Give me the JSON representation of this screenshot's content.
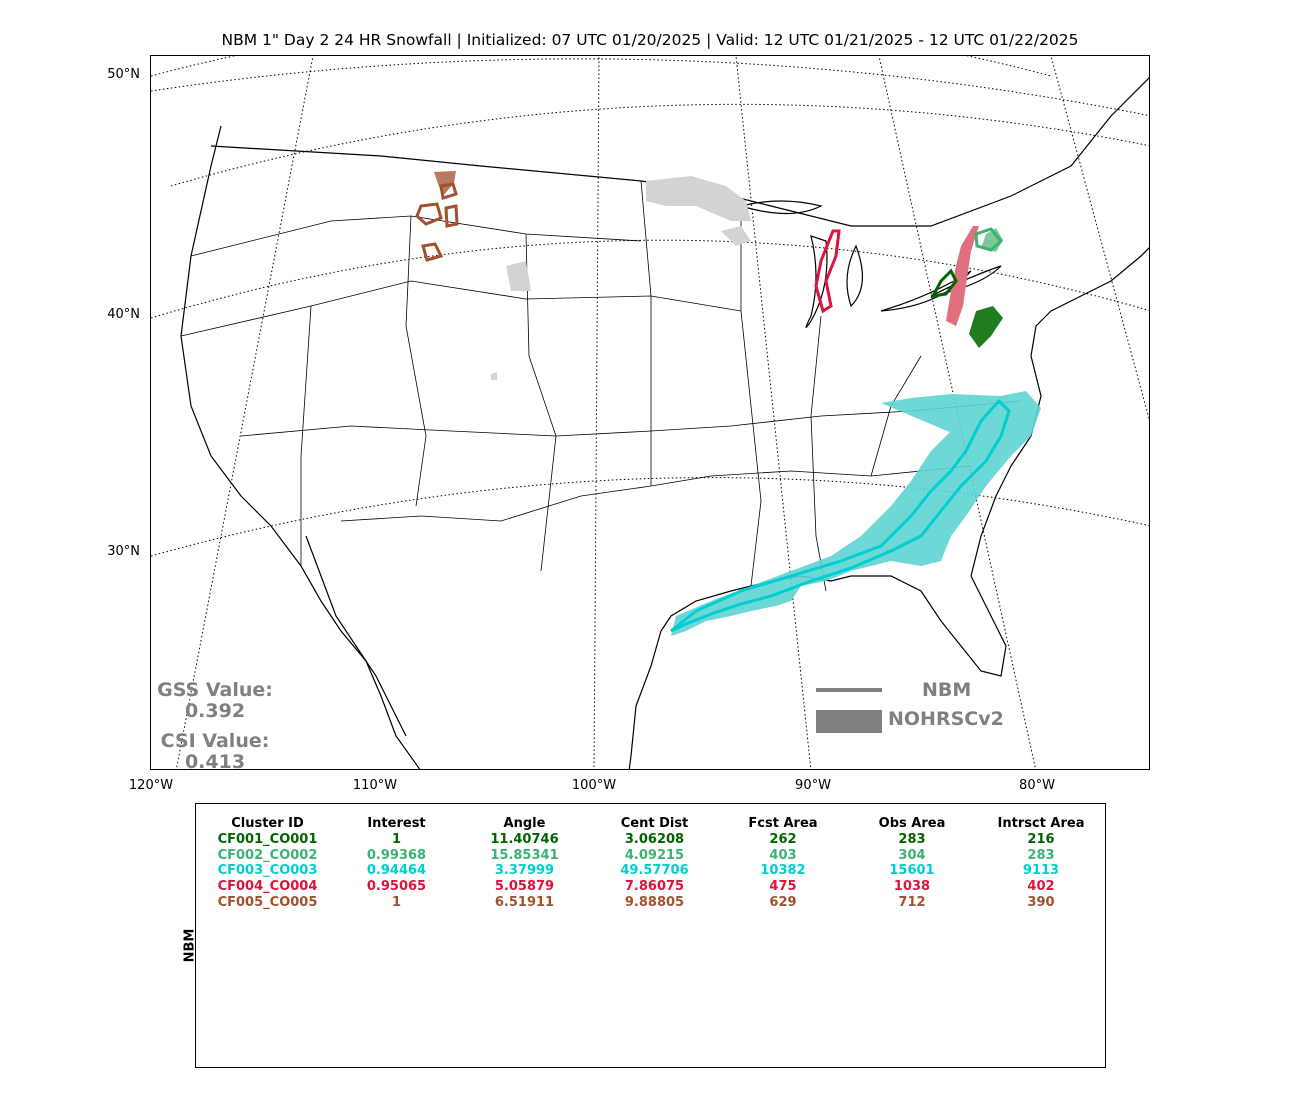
{
  "title": "NBM 1\" Day 2 24 HR Snowfall | Initialized: 07 UTC 01/20/2025 | Valid: 12 UTC 01/21/2025 - 12 UTC 01/22/2025",
  "lat_labels": [
    "50°N",
    "40°N",
    "30°N"
  ],
  "lon_labels": [
    "120°W",
    "110°W",
    "100°W",
    "90°W",
    "80°W"
  ],
  "gss": {
    "label": "GSS Value:",
    "value": "0.392"
  },
  "csi": {
    "label": "CSI Value:",
    "value": "0.413"
  },
  "legend": {
    "forecast": "NBM",
    "observed": "NOHRSCv2"
  },
  "table": {
    "side_label": "NBM",
    "headers": [
      "Cluster ID",
      "Interest",
      "Angle",
      "Cent Dist",
      "Fcst Area",
      "Obs Area",
      "Intrsct Area"
    ],
    "rows": [
      {
        "color": "#006400",
        "cells": [
          "CF001_CO001",
          "1",
          "11.40746",
          "3.06208",
          "262",
          "283",
          "216"
        ]
      },
      {
        "color": "#3CB371",
        "cells": [
          "CF002_CO002",
          "0.99368",
          "15.85341",
          "4.09215",
          "403",
          "304",
          "283"
        ]
      },
      {
        "color": "#00CED1",
        "cells": [
          "CF003_CO003",
          "0.94464",
          "3.37999",
          "49.57706",
          "10382",
          "15601",
          "9113"
        ]
      },
      {
        "color": "#DC143C",
        "cells": [
          "CF004_CO004",
          "0.95065",
          "5.05879",
          "7.86075",
          "475",
          "1038",
          "402"
        ]
      },
      {
        "color": "#A0522D",
        "cells": [
          "CF005_CO005",
          "1",
          "6.51911",
          "9.88805",
          "629",
          "712",
          "390"
        ]
      }
    ]
  },
  "colors": {
    "unmatched": "#d3d3d3",
    "legend_gray": "#808080"
  }
}
